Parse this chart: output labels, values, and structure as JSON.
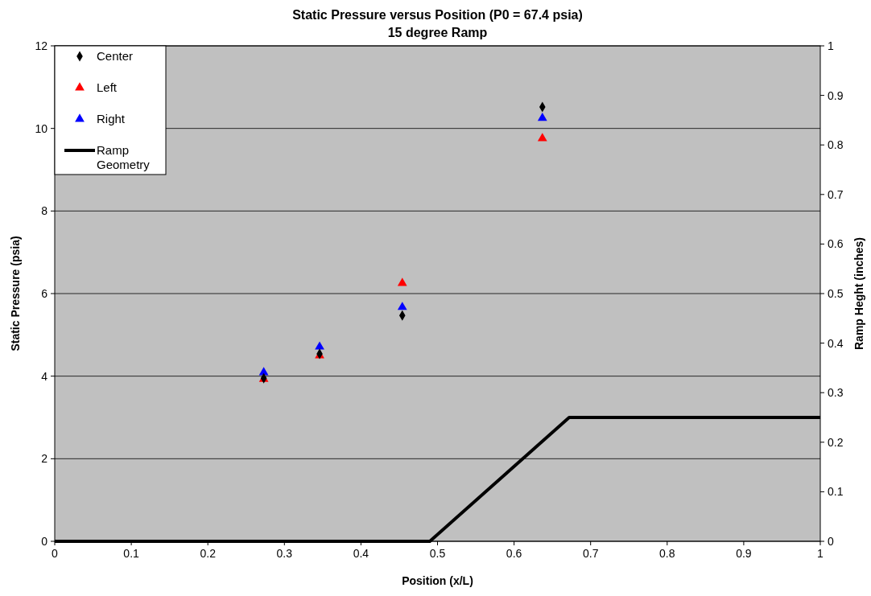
{
  "chart_data": {
    "type": "scatter",
    "title": "Static Pressure versus Position (P0 = 67.4 psia)",
    "subtitle": "15 degree Ramp",
    "xlabel": "Position (x/L)",
    "ylabel": "Static Pressure (psia)",
    "y2label": "Ramp Heght (inches)",
    "xlim": [
      0,
      1
    ],
    "xticks": [
      0,
      0.1,
      0.2,
      0.3,
      0.4,
      0.5,
      0.6,
      0.7,
      0.8,
      0.9,
      1
    ],
    "ylim": [
      0,
      12
    ],
    "yticks": [
      0,
      2,
      4,
      6,
      8,
      10,
      12
    ],
    "y2lim": [
      0,
      1
    ],
    "y2ticks": [
      0,
      0.1,
      0.2,
      0.3,
      0.4,
      0.5,
      0.6,
      0.7,
      0.8,
      0.9,
      1
    ],
    "grid": "y",
    "legend": "top left",
    "series": [
      {
        "name": "Center",
        "color": "#000000",
        "marker": "diamond",
        "x": [
          0.273,
          0.346,
          0.454,
          0.637
        ],
        "values": [
          3.95,
          4.54,
          5.47,
          10.52
        ]
      },
      {
        "name": "Left",
        "color": "#ff0000",
        "marker": "triangle",
        "x": [
          0.273,
          0.346,
          0.454,
          0.637
        ],
        "values": [
          3.93,
          4.5,
          6.25,
          9.76
        ]
      },
      {
        "name": "Right",
        "color": "#0000ff",
        "marker": "triangle",
        "x": [
          0.273,
          0.346,
          0.454,
          0.637
        ],
        "values": [
          4.09,
          4.71,
          5.67,
          10.25
        ]
      },
      {
        "name": "Ramp Geometry",
        "type": "line",
        "axis": "y2",
        "color": "#000000",
        "marker": "none",
        "line_style": "solid",
        "x": [
          0,
          0.49,
          0.672,
          1
        ],
        "values": [
          0,
          0,
          0.25,
          0.25
        ]
      }
    ]
  }
}
